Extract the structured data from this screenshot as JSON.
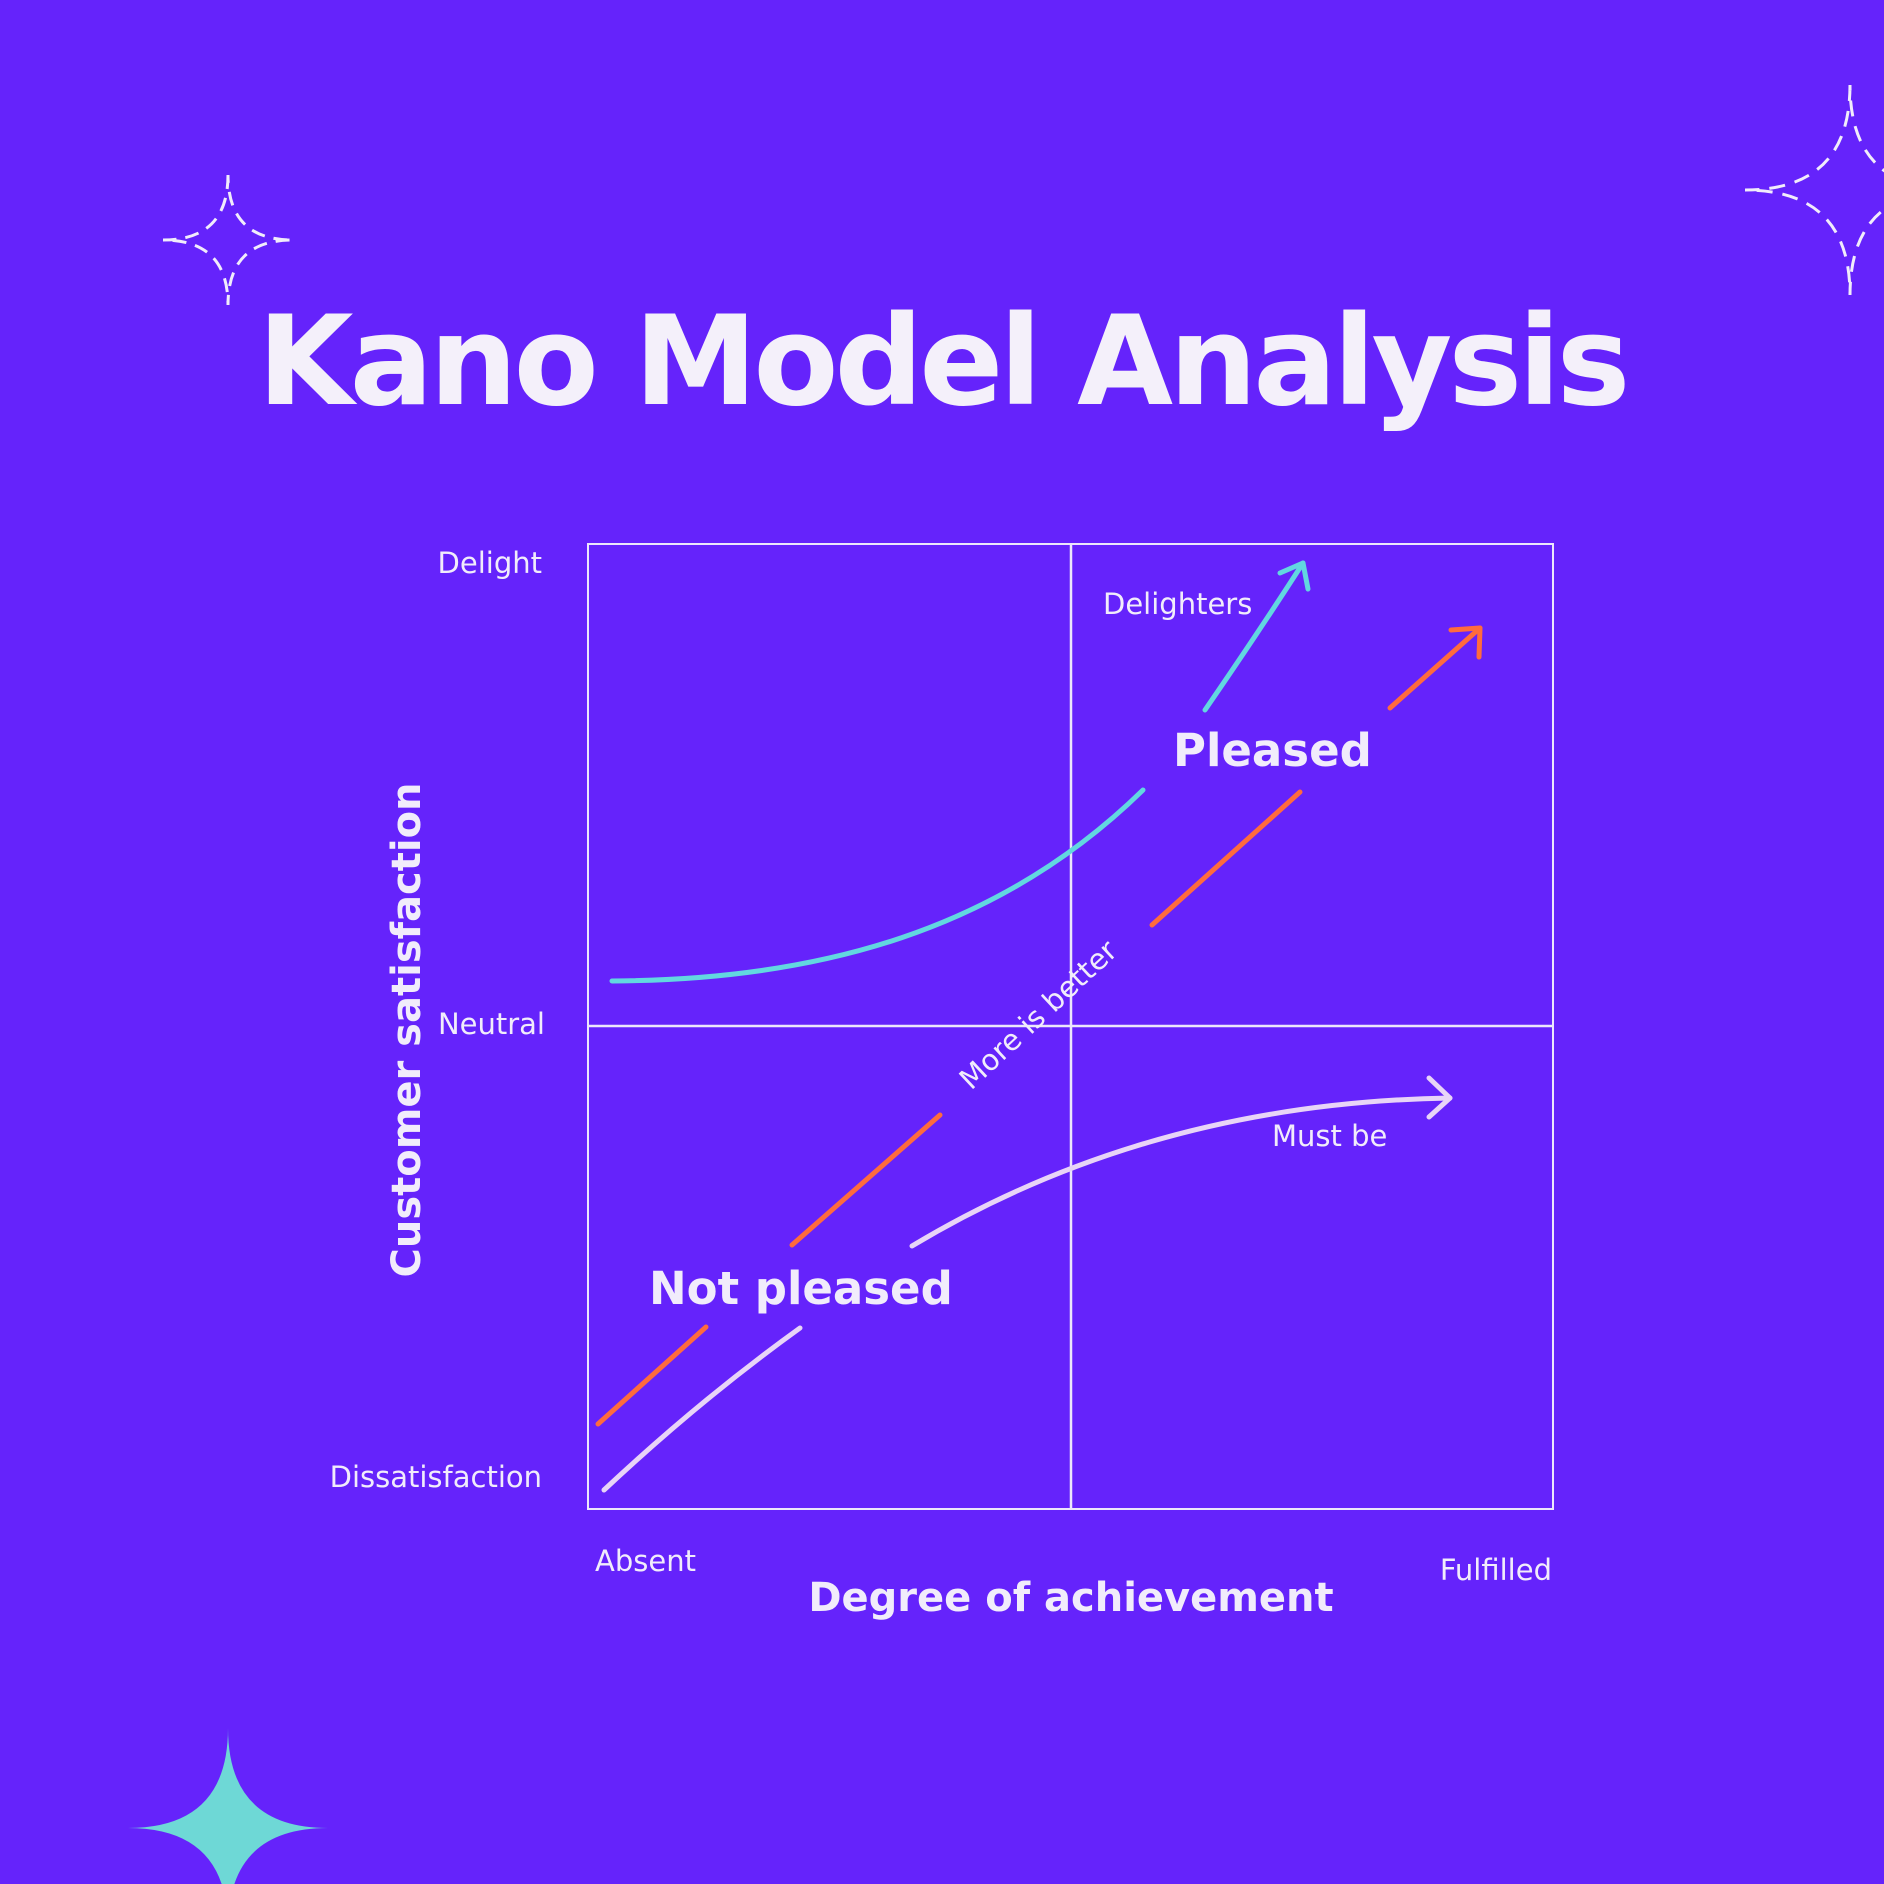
{
  "title": "Kano Model Analysis",
  "axes": {
    "y_title": "Customer satisfaction",
    "x_title": "Degree of achievement",
    "y_ticks": {
      "top": "Delight",
      "middle": "Neutral",
      "bottom": "Dissatisfaction"
    },
    "x_ticks": {
      "left": "Absent",
      "right": "Fulfilled"
    }
  },
  "regions": {
    "upper": "Pleased",
    "lower": "Not pleased"
  },
  "curves": {
    "delighters": {
      "label": "Delighters",
      "color": "#62d7e0"
    },
    "performance": {
      "label": "More is better",
      "color": "#ff6b3d"
    },
    "must_be": {
      "label": "Must be",
      "color": "#e8d4f7"
    }
  },
  "colors": {
    "background": "#6523fb",
    "text": "#f4f0fa",
    "accent_star": "#6ed8d6"
  },
  "icons": [
    "dashed-sparkle-icon",
    "dashed-sparkle-icon",
    "sparkle-icon"
  ]
}
